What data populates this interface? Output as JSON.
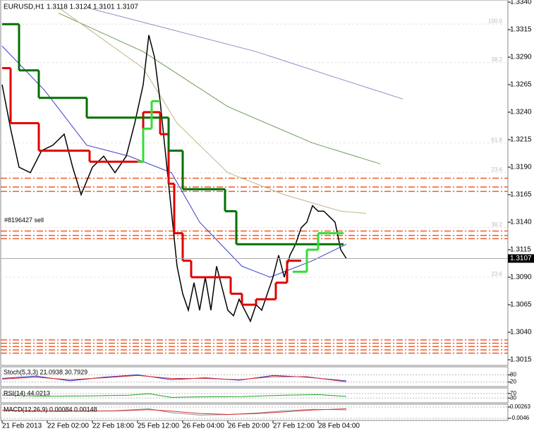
{
  "chart_data": [
    {
      "type": "line",
      "title": "EURUSD,H1",
      "subtitle": "1.3118 1.3124 1.3101 1.3107",
      "xlim": [
        0,
        179
      ],
      "xticks": [
        {
          "value": 0,
          "label": "21 Feb 2013"
        },
        {
          "value": 16,
          "label": "22 Feb 02:00"
        },
        {
          "value": 32,
          "label": "22 Feb 18:00"
        },
        {
          "value": 48,
          "label": "25 Feb 12:00"
        },
        {
          "value": 64,
          "label": "26 Feb 04:00"
        },
        {
          "value": 80,
          "label": "26 Feb 20:00"
        },
        {
          "value": 96,
          "label": "27 Feb 12:00"
        },
        {
          "value": 112,
          "label": "28 Feb 04:00"
        }
      ],
      "ylim": [
        1.3015,
        1.334
      ],
      "yticks": [
        {
          "value": 1.334,
          "label": "1.3340"
        },
        {
          "value": 1.3315,
          "label": "1.3315"
        },
        {
          "value": 1.329,
          "label": "1.3290"
        },
        {
          "value": 1.3265,
          "label": "1.3265"
        },
        {
          "value": 1.324,
          "label": "1.3240"
        },
        {
          "value": 1.3215,
          "label": "1.3215"
        },
        {
          "value": 1.319,
          "label": "1.3190"
        },
        {
          "value": 1.3165,
          "label": "1.3165"
        },
        {
          "value": 1.314,
          "label": "1.3140"
        },
        {
          "value": 1.3115,
          "label": "1.3115"
        },
        {
          "value": 1.309,
          "label": "1.3090"
        },
        {
          "value": 1.3065,
          "label": "1.3065"
        },
        {
          "value": 1.304,
          "label": "1.3040"
        },
        {
          "value": 1.3015,
          "label": "1.3015"
        }
      ],
      "current": 1.3107,
      "levels": [
        1.318,
        1.3172,
        1.3168,
        1.3132,
        1.3128,
        1.3125,
        1.3033,
        1.303,
        1.3027,
        1.3024,
        1.3021
      ],
      "level_color": "#f05a28",
      "annotations": [
        {
          "text": "#8196427 sell",
          "price": 1.3135
        }
      ],
      "fib_labels": [
        {
          "text": "100.0",
          "price": 1.332
        },
        {
          "text": "38.2",
          "price": 1.3285
        },
        {
          "text": "61.8",
          "price": 1.3212
        },
        {
          "text": "23.6",
          "price": 1.3185
        },
        {
          "text": "38.2",
          "price": 1.3135
        },
        {
          "text": "23.6",
          "price": 1.309
        }
      ],
      "series": [
        {
          "color": "#9c86c8",
          "x": [
            30,
            60,
            90,
            120,
            142
          ],
          "values": [
            1.3335,
            1.3315,
            1.3295,
            1.327,
            1.3252
          ]
        },
        {
          "color": "#6f9a5a",
          "x": [
            20,
            50,
            80,
            110,
            134
          ],
          "values": [
            1.333,
            1.3295,
            1.3245,
            1.3212,
            1.3193
          ]
        },
        {
          "color": "#c2b48a",
          "x": [
            20,
            50,
            62,
            80,
            100,
            120,
            129
          ],
          "values": [
            1.3335,
            1.328,
            1.323,
            1.3185,
            1.3165,
            1.315,
            1.3148
          ]
        },
        {
          "color": "#3c3cc8",
          "x": [
            0,
            15,
            30,
            45,
            60,
            70,
            85,
            95,
            110,
            122
          ],
          "values": [
            1.33,
            1.326,
            1.321,
            1.32,
            1.3185,
            1.314,
            1.31,
            1.309,
            1.3105,
            1.312
          ]
        },
        {
          "color": "#000000",
          "x": [
            0,
            3,
            6,
            10,
            14,
            18,
            22,
            25,
            28,
            32,
            36,
            40,
            44,
            47,
            50,
            52,
            54,
            56,
            58,
            60,
            62,
            64,
            66,
            68,
            70,
            72,
            74,
            76,
            78,
            80,
            82,
            84,
            86,
            88,
            90,
            92,
            94,
            96,
            98,
            100,
            102,
            104,
            106,
            108,
            110,
            112,
            114,
            116,
            118,
            120,
            122
          ],
          "values": [
            1.3265,
            1.3225,
            1.319,
            1.3185,
            1.3205,
            1.321,
            1.322,
            1.319,
            1.3165,
            1.319,
            1.32,
            1.3185,
            1.32,
            1.323,
            1.3265,
            1.331,
            1.329,
            1.325,
            1.32,
            1.315,
            1.31,
            1.3075,
            1.306,
            1.3085,
            1.306,
            1.309,
            1.306,
            1.31,
            1.308,
            1.306,
            1.3055,
            1.307,
            1.306,
            1.305,
            1.3065,
            1.306,
            1.3075,
            1.309,
            1.311,
            1.309,
            1.311,
            1.312,
            1.3135,
            1.314,
            1.3155,
            1.315,
            1.315,
            1.3145,
            1.314,
            1.3115,
            1.3107
          ]
        },
        {
          "color": "#e00000",
          "step": true,
          "x": [
            0,
            3,
            13,
            31,
            50,
            56,
            59,
            61,
            64,
            67,
            81,
            85,
            90,
            97,
            101,
            106
          ],
          "values": [
            1.328,
            1.323,
            1.3205,
            1.3195,
            1.324,
            1.322,
            1.3175,
            1.313,
            1.3105,
            1.309,
            1.3075,
            1.3065,
            1.307,
            1.3085,
            1.3105,
            null
          ]
        },
        {
          "color": "#007000",
          "step": true,
          "x": [
            0,
            6,
            13,
            30,
            59,
            64,
            79,
            83,
            121
          ],
          "values": [
            1.332,
            1.3278,
            1.3253,
            1.3235,
            1.3205,
            1.317,
            1.315,
            1.312,
            null
          ]
        },
        {
          "color": "#33dd33",
          "step": true,
          "x": [
            48,
            50,
            53,
            56,
            103,
            108,
            112,
            121
          ],
          "values": [
            1.3195,
            1.3225,
            1.325,
            null,
            1.3095,
            1.3115,
            1.313,
            null
          ]
        }
      ]
    },
    {
      "type": "line",
      "title": "Stoch(5,3,3) 21.0938 30.7929",
      "xlim": [
        0,
        179
      ],
      "ylim": [
        0,
        100
      ],
      "yticks": [
        80,
        20
      ],
      "series": [
        {
          "color": "#3030c0",
          "x": [
            0,
            12,
            24,
            36,
            48,
            60,
            72,
            84,
            96,
            108,
            122
          ],
          "values": [
            50,
            70,
            30,
            60,
            80,
            40,
            55,
            35,
            75,
            60,
            30
          ]
        },
        {
          "color": "#e03030",
          "x": [
            0,
            12,
            24,
            36,
            48,
            60,
            72,
            84,
            96,
            108,
            122
          ],
          "values": [
            45,
            60,
            40,
            55,
            75,
            50,
            50,
            40,
            65,
            65,
            21
          ]
        }
      ]
    },
    {
      "type": "line",
      "title": "RSI(14) 44.0213",
      "xlim": [
        0,
        179
      ],
      "ylim": [
        0,
        100
      ],
      "yticks": [
        70,
        30
      ],
      "series": [
        {
          "color": "#20a020",
          "x": [
            0,
            15,
            30,
            45,
            52,
            60,
            70,
            85,
            100,
            112,
            122
          ],
          "values": [
            55,
            45,
            48,
            55,
            68,
            35,
            40,
            42,
            55,
            60,
            44
          ]
        }
      ]
    },
    {
      "type": "line",
      "title": "MACD(12,26,9) 0.00084 0.00148",
      "xlim": [
        0,
        179
      ],
      "ylim": [
        -0.0046,
        0.00263
      ],
      "yticks": [
        0.00263,
        -0.0046
      ],
      "series": [
        {
          "color": "#909090",
          "x": [
            0,
            20,
            40,
            52,
            60,
            70,
            80,
            90,
            100,
            110,
            122
          ],
          "values": [
            0.0005,
            -0.0002,
            0.0003,
            0.0015,
            -0.001,
            -0.0025,
            -0.0022,
            -0.0012,
            0.0002,
            0.0012,
            0.00084
          ]
        },
        {
          "color": "#e03030",
          "x": [
            0,
            20,
            40,
            52,
            60,
            70,
            80,
            90,
            100,
            110,
            122
          ],
          "values": [
            0.0004,
            0.0,
            0.0001,
            0.0009,
            0.0,
            -0.0015,
            -0.0021,
            -0.0016,
            -0.0005,
            0.0007,
            0.00148
          ]
        }
      ]
    }
  ]
}
